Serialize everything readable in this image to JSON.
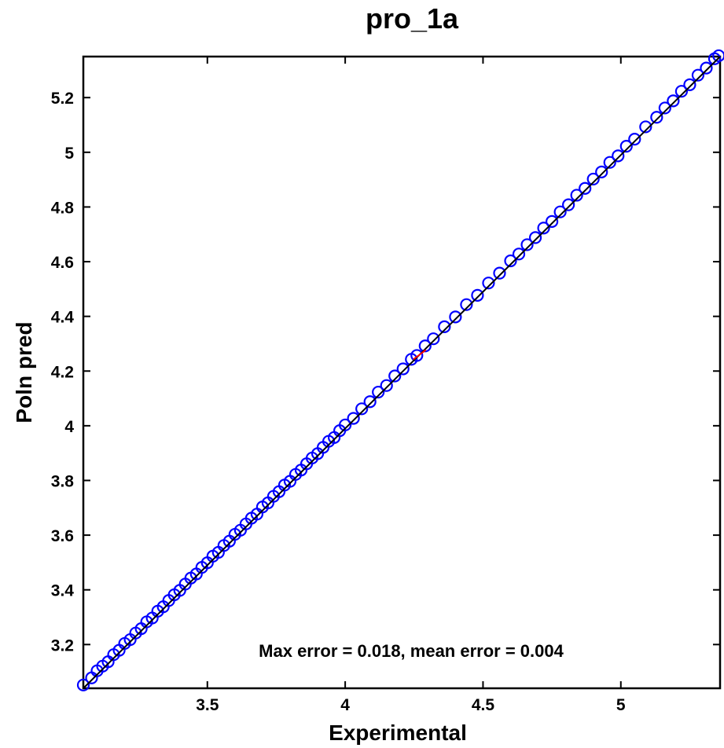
{
  "chart_data": {
    "type": "scatter",
    "title": "pro_1a",
    "xlabel": "Experimental",
    "ylabel": "Poln pred",
    "xlim": [
      3.05,
      5.36
    ],
    "ylim": [
      3.04,
      5.35
    ],
    "x_ticks": [
      {
        "value": 3.5,
        "label": "3.5"
      },
      {
        "value": 4,
        "label": "4"
      },
      {
        "value": 4.5,
        "label": "4.5"
      },
      {
        "value": 5,
        "label": "5"
      }
    ],
    "y_ticks": [
      {
        "value": 3.2,
        "label": "3.2"
      },
      {
        "value": 3.4,
        "label": "3.4"
      },
      {
        "value": 3.6,
        "label": "3.6"
      },
      {
        "value": 3.8,
        "label": "3.8"
      },
      {
        "value": 4,
        "label": "4"
      },
      {
        "value": 4.2,
        "label": "4.2"
      },
      {
        "value": 4.4,
        "label": "4.4"
      },
      {
        "value": 4.6,
        "label": "4.6"
      },
      {
        "value": 4.8,
        "label": "4.8"
      },
      {
        "value": 5,
        "label": "5"
      },
      {
        "value": 5.2,
        "label": "5.2"
      }
    ],
    "annotation": "Max error = 0.018, mean error = 0.004",
    "series": [
      {
        "marker": "circle",
        "color": "#0000ff",
        "points": [
          [
            3.05,
            3.052
          ],
          [
            3.08,
            3.078
          ],
          [
            3.1,
            3.104
          ],
          [
            3.12,
            3.121
          ],
          [
            3.14,
            3.137
          ],
          [
            3.16,
            3.163
          ],
          [
            3.18,
            3.179
          ],
          [
            3.2,
            3.204
          ],
          [
            3.22,
            3.218
          ],
          [
            3.24,
            3.242
          ],
          [
            3.26,
            3.258
          ],
          [
            3.28,
            3.283
          ],
          [
            3.3,
            3.297
          ],
          [
            3.32,
            3.322
          ],
          [
            3.34,
            3.338
          ],
          [
            3.36,
            3.361
          ],
          [
            3.38,
            3.382
          ],
          [
            3.4,
            3.398
          ],
          [
            3.42,
            3.421
          ],
          [
            3.44,
            3.443
          ],
          [
            3.46,
            3.458
          ],
          [
            3.48,
            3.482
          ],
          [
            3.5,
            3.499
          ],
          [
            3.52,
            3.523
          ],
          [
            3.54,
            3.537
          ],
          [
            3.56,
            3.562
          ],
          [
            3.58,
            3.578
          ],
          [
            3.6,
            3.603
          ],
          [
            3.62,
            3.618
          ],
          [
            3.64,
            3.641
          ],
          [
            3.66,
            3.662
          ],
          [
            3.68,
            3.677
          ],
          [
            3.7,
            3.703
          ],
          [
            3.72,
            3.718
          ],
          [
            3.74,
            3.742
          ],
          [
            3.76,
            3.759
          ],
          [
            3.78,
            3.783
          ],
          [
            3.8,
            3.797
          ],
          [
            3.82,
            3.822
          ],
          [
            3.84,
            3.838
          ],
          [
            3.86,
            3.861
          ],
          [
            3.88,
            3.882
          ],
          [
            3.9,
            3.898
          ],
          [
            3.92,
            3.921
          ],
          [
            3.94,
            3.943
          ],
          [
            3.96,
            3.957
          ],
          [
            3.98,
            3.982
          ],
          [
            4.0,
            4.003
          ],
          [
            4.03,
            4.027
          ],
          [
            4.06,
            4.062
          ],
          [
            4.09,
            4.088
          ],
          [
            4.12,
            4.123
          ],
          [
            4.15,
            4.147
          ],
          [
            4.18,
            4.182
          ],
          [
            4.21,
            4.208
          ],
          [
            4.24,
            4.243
          ],
          [
            4.26,
            4.257
          ],
          [
            4.29,
            4.292
          ],
          [
            4.32,
            4.318
          ],
          [
            4.36,
            4.362
          ],
          [
            4.4,
            4.398
          ],
          [
            4.44,
            4.443
          ],
          [
            4.48,
            4.477
          ],
          [
            4.52,
            4.522
          ],
          [
            4.56,
            4.558
          ],
          [
            4.6,
            4.603
          ],
          [
            4.63,
            4.628
          ],
          [
            4.66,
            4.662
          ],
          [
            4.69,
            4.688
          ],
          [
            4.72,
            4.723
          ],
          [
            4.75,
            4.747
          ],
          [
            4.78,
            4.782
          ],
          [
            4.81,
            4.808
          ],
          [
            4.84,
            4.843
          ],
          [
            4.87,
            4.868
          ],
          [
            4.9,
            4.902
          ],
          [
            4.93,
            4.928
          ],
          [
            4.96,
            4.963
          ],
          [
            4.99,
            4.987
          ],
          [
            5.02,
            5.022
          ],
          [
            5.05,
            5.048
          ],
          [
            5.09,
            5.093
          ],
          [
            5.13,
            5.128
          ],
          [
            5.16,
            5.162
          ],
          [
            5.19,
            5.188
          ],
          [
            5.22,
            5.223
          ],
          [
            5.25,
            5.247
          ],
          [
            5.28,
            5.282
          ],
          [
            5.31,
            5.308
          ],
          [
            5.34,
            5.342
          ],
          [
            5.355,
            5.353
          ]
        ]
      }
    ],
    "reference_line": {
      "from": [
        3.04,
        3.04
      ],
      "to": [
        5.36,
        5.36
      ],
      "color": "#000000"
    },
    "highlight_point": {
      "x": 4.27,
      "y": 4.26,
      "color": "#ff0000"
    },
    "grid": false,
    "legend": "none"
  }
}
